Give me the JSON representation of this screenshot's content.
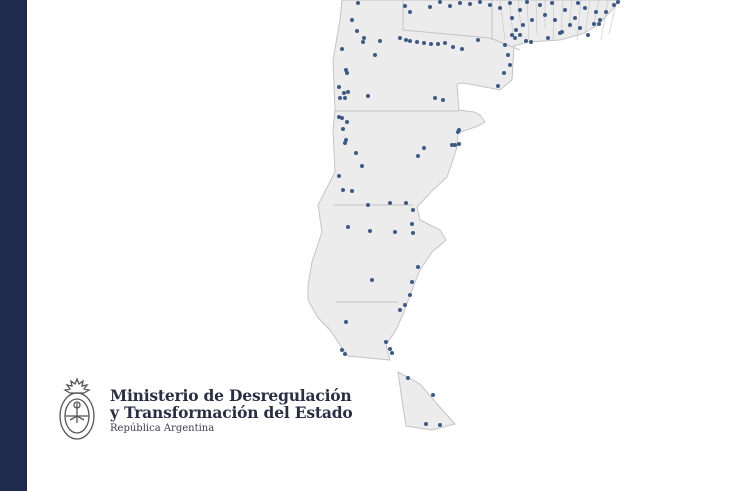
{
  "colors": {
    "stripe": "#1f2a4e",
    "land": "#ececec",
    "border": "#c4c4c4",
    "dot": "#3d5a86"
  },
  "logo": {
    "line1": "Ministerio de Desregulación",
    "line2": "y Transformación del Estado",
    "line3": "República Argentina",
    "emblem": "escudo-nacional-argentino"
  }
}
